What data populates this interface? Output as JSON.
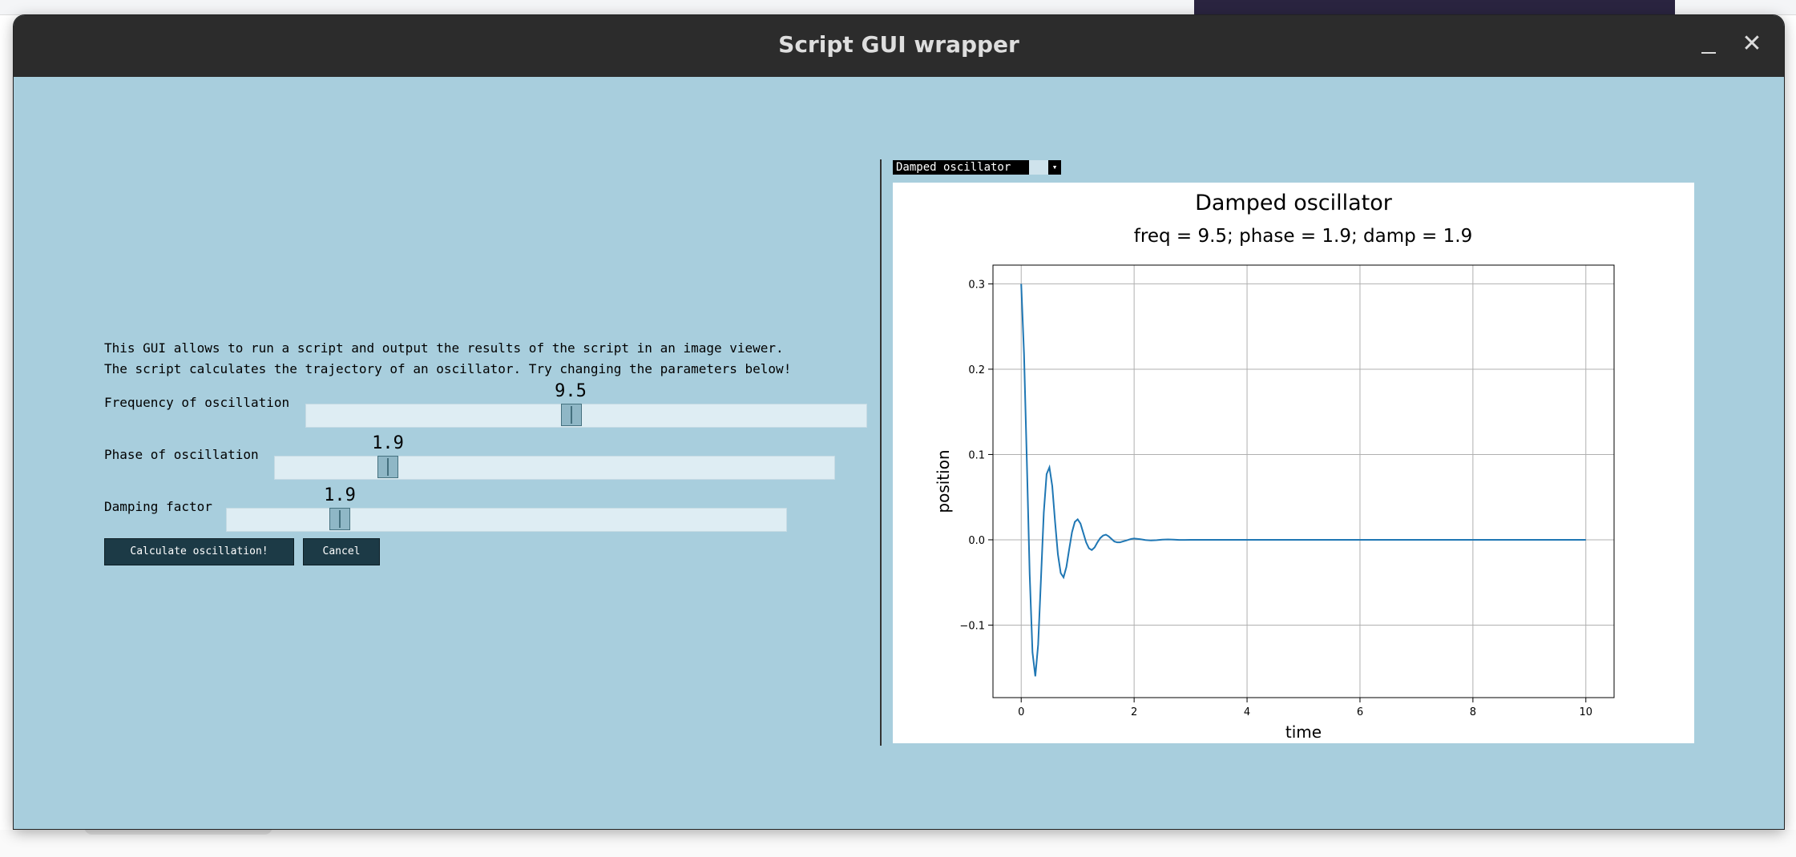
{
  "window": {
    "title": "Script GUI wrapper",
    "minimize_icon": "minimize-icon",
    "close_icon": "close-icon",
    "close_glyph": "✕"
  },
  "description": {
    "line1": "This GUI allows to run a script and output the results of the script in an image viewer.",
    "line2": "The script calculates the trajectory of an oscillator. Try changing the parameters below!"
  },
  "params": [
    {
      "label": "Frequency of oscillation",
      "value": "9.5"
    },
    {
      "label": "Phase of oscillation",
      "value": "1.9"
    },
    {
      "label": "Damping factor",
      "value": "1.9"
    }
  ],
  "buttons": {
    "calculate": "Calculate oscillation!",
    "cancel": "Cancel"
  },
  "viewer": {
    "selected_image": "Damped oscillator",
    "dropdown_icon": "chevron-down-icon"
  },
  "chart_data": {
    "type": "line",
    "title": "Damped oscillator",
    "subtitle": "freq = 9.5; phase = 1.9; damp = 1.9",
    "xlabel": "time",
    "ylabel": "position",
    "xlim": [
      -0.5,
      10.5
    ],
    "ylim": [
      -0.185,
      0.322
    ],
    "xticks": [
      0,
      2,
      4,
      6,
      8,
      10
    ],
    "yticks": [
      -0.1,
      0.0,
      0.1,
      0.2,
      0.3
    ],
    "ytick_labels": [
      "−0.1",
      "0.0",
      "0.1",
      "0.2",
      "0.3"
    ],
    "grid": true,
    "color": "#1f77b4",
    "series": [
      {
        "x": [
          0.0,
          0.05,
          0.1,
          0.15,
          0.2,
          0.25,
          0.3,
          0.35,
          0.4,
          0.45,
          0.5,
          0.55,
          0.6,
          0.65,
          0.7,
          0.75,
          0.8,
          0.85,
          0.9,
          0.95,
          1.0,
          1.05,
          1.1,
          1.15,
          1.2,
          1.25,
          1.3,
          1.35,
          1.4,
          1.45,
          1.5,
          1.55,
          1.6,
          1.65,
          1.7,
          1.75,
          1.8,
          1.85,
          1.9,
          1.95,
          2.0,
          2.1,
          2.2,
          2.3,
          2.4,
          2.5,
          2.6,
          2.7,
          2.8,
          2.9,
          3.0,
          3.2,
          3.4,
          3.6,
          3.8,
          4.0,
          5.0,
          6.0,
          7.0,
          8.0,
          9.0,
          10.0
        ],
        "y": [
          0.3,
          0.218,
          0.092,
          -0.04,
          -0.132,
          -0.16,
          -0.123,
          -0.046,
          0.032,
          0.077,
          0.085,
          0.063,
          0.021,
          -0.017,
          -0.039,
          -0.044,
          -0.032,
          -0.011,
          0.009,
          0.021,
          0.024,
          0.019,
          0.008,
          -0.003,
          -0.01,
          -0.012,
          -0.009,
          -0.003,
          0.002,
          0.005,
          0.006,
          0.004,
          0.001,
          -0.002,
          -0.003,
          -0.003,
          -0.002,
          -0.001,
          0.0,
          0.001,
          0.0015,
          0.0008,
          -0.0003,
          -0.0008,
          -0.0004,
          0.0002,
          0.0004,
          0.0002,
          -0.0001,
          -0.0002,
          0.0,
          0.0,
          0.0,
          0.0,
          0.0,
          0.0,
          0.0,
          0.0,
          0.0,
          0.0,
          0.0,
          0.0
        ]
      }
    ]
  }
}
